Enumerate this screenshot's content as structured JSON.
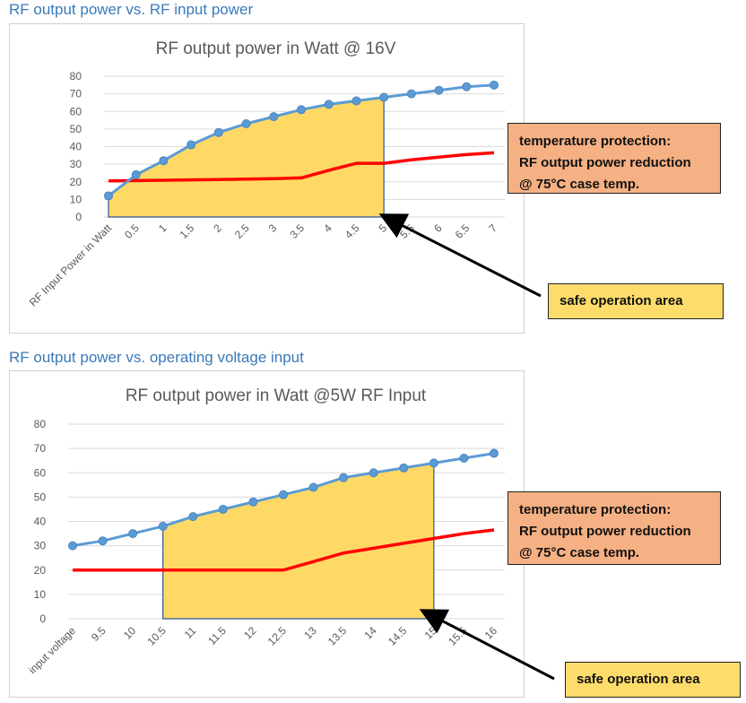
{
  "headings": {
    "top": "RF output power vs. RF input power",
    "bottom": "RF output power vs. operating voltage input"
  },
  "callouts": {
    "temp_line1": "temperature protection:",
    "temp_line2": "RF output power reduction",
    "temp_line3": "@ 75°C case temp.",
    "safe": "safe operation area"
  },
  "colors": {
    "output_line": "#5b9bd5",
    "output_marker": "#5b9bd5",
    "temp_line": "#ff0000",
    "safe_fill": "#ffd966",
    "temp_box": "#f5b083",
    "safe_box": "#fddc6b"
  },
  "chart_data": [
    {
      "type": "line",
      "title": "RF output power in Watt @ 16V",
      "xlabel": "RF Input Power in Watt",
      "categories": [
        "RF Input Power in Watt",
        "0.5",
        "1",
        "1.5",
        "2",
        "2.5",
        "3",
        "3.5",
        "4",
        "4.5",
        "5",
        "5.5",
        "6",
        "6.5",
        "7"
      ],
      "ylim": [
        0,
        80
      ],
      "yticks": [
        0,
        10,
        20,
        30,
        40,
        50,
        60,
        70,
        80
      ],
      "series": [
        {
          "name": "RF output power",
          "values": [
            12,
            24,
            32,
            41,
            48,
            53,
            57,
            61,
            64,
            66,
            68,
            70,
            72,
            74,
            75
          ]
        },
        {
          "name": "temperature protection",
          "values": [
            20.5,
            20.7,
            20.9,
            21.1,
            21.3,
            21.5,
            21.8,
            22.2,
            26.5,
            30.5,
            30.5,
            32.5,
            34,
            35.5,
            36.5
          ]
        }
      ],
      "safe_area_end_index": 10
    },
    {
      "type": "line",
      "title": "RF output power in Watt @5W RF Input",
      "xlabel": "input voltage",
      "categories": [
        "input voltage",
        "9.5",
        "10",
        "10.5",
        "11",
        "11.5",
        "12",
        "12.5",
        "13",
        "13.5",
        "14",
        "14.5",
        "15",
        "15.5",
        "16"
      ],
      "ylim": [
        0,
        80
      ],
      "yticks": [
        0,
        10,
        20,
        30,
        40,
        50,
        60,
        70,
        80
      ],
      "series": [
        {
          "name": "RF output power",
          "values": [
            30,
            32,
            35,
            38,
            42,
            45,
            48,
            51,
            54,
            58,
            60,
            62,
            64,
            66,
            68
          ]
        },
        {
          "name": "temperature protection",
          "values": [
            20,
            20,
            20,
            20,
            20,
            20,
            20,
            20,
            23.5,
            27,
            29,
            31,
            33,
            35,
            36.5
          ]
        }
      ],
      "safe_area_start_index": 3,
      "safe_area_end_index": 12
    }
  ]
}
